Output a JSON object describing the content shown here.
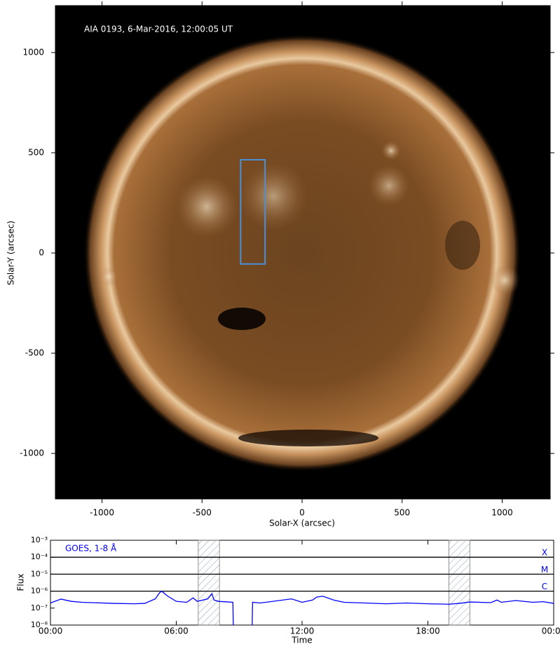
{
  "chart_data": [
    {
      "type": "image",
      "annotation": "AIA 0193, 6-Mar-2016, 12:00:05 UT",
      "xlabel": "Solar-X (arcsec)",
      "ylabel": "Solar-Y (arcsec)",
      "xlim": [
        -1233,
        1240
      ],
      "ylim": [
        -1227,
        1234
      ],
      "xticks": [
        -1000,
        -500,
        0,
        500,
        1000
      ],
      "yticks": [
        -1000,
        -500,
        0,
        500,
        1000
      ],
      "box": {
        "x": [
          -307,
          -185
        ],
        "y": [
          -55,
          465
        ],
        "color": "#4a90d9"
      }
    },
    {
      "type": "line",
      "xlabel": "Time",
      "ylabel": "Flux",
      "log_y": true,
      "xlim": [
        0,
        24
      ],
      "ylim": [
        1e-08,
        0.001
      ],
      "xticks": [
        {
          "value": 0,
          "label": "00:00"
        },
        {
          "value": 6,
          "label": "06:00"
        },
        {
          "value": 12,
          "label": "12:00"
        },
        {
          "value": 18,
          "label": "18:00"
        },
        {
          "value": 24,
          "label": "00:00"
        }
      ],
      "yticks": [
        {
          "value": 1e-08,
          "label": "10⁻⁸"
        },
        {
          "value": 1e-07,
          "label": "10⁻⁷"
        },
        {
          "value": 1e-06,
          "label": "10⁻⁶"
        },
        {
          "value": 1e-05,
          "label": "10⁻⁵"
        },
        {
          "value": 0.0001,
          "label": "10⁻⁴"
        },
        {
          "value": 0.001,
          "label": "10⁻³"
        }
      ],
      "levels": [
        {
          "value": 0.0001,
          "label": "X"
        },
        {
          "value": 1e-05,
          "label": "M"
        },
        {
          "value": 1e-06,
          "label": "C"
        }
      ],
      "level_color": "#0000ff",
      "shaded": [
        [
          7.05,
          8.06
        ],
        [
          19.0,
          20.0
        ]
      ],
      "series": [
        {
          "name": "GOES, 1-8 Å",
          "color": "#0000ff",
          "x": [
            0,
            0.5,
            1,
            1.5,
            2,
            3,
            4,
            4.5,
            5.0,
            5.2,
            5.3,
            5.6,
            6,
            6.5,
            6.8,
            7.0,
            7.5,
            7.7,
            7.8,
            8.0,
            8.5,
            8.7,
            8.72,
            9.0,
            9.62,
            9.64,
            10,
            11.5,
            12,
            12.5,
            12.7,
            13,
            13.5,
            14,
            15,
            16,
            17,
            18,
            19,
            19.5,
            20,
            21,
            21.3,
            21.5,
            22.2,
            23,
            23.5,
            24
          ],
          "values": [
            2e-07,
            3.4e-07,
            2.5e-07,
            2.2e-07,
            2.1e-07,
            1.9e-07,
            1.8e-07,
            1.9e-07,
            3.5e-07,
            8e-07,
            1e-06,
            5e-07,
            2.5e-07,
            2.2e-07,
            4e-07,
            2.5e-07,
            3.5e-07,
            7e-07,
            3e-07,
            2.5e-07,
            2.3e-07,
            2.2e-07,
            1e-08,
            null,
            1e-08,
            2.2e-07,
            2e-07,
            3.5e-07,
            2.2e-07,
            3e-07,
            4.5e-07,
            5e-07,
            3e-07,
            2.2e-07,
            2e-07,
            1.8e-07,
            2e-07,
            1.8e-07,
            1.7e-07,
            1.9e-07,
            2.3e-07,
            2.1e-07,
            3e-07,
            2.2e-07,
            2.8e-07,
            2.2e-07,
            2.4e-07,
            1.9e-07
          ]
        }
      ]
    }
  ]
}
